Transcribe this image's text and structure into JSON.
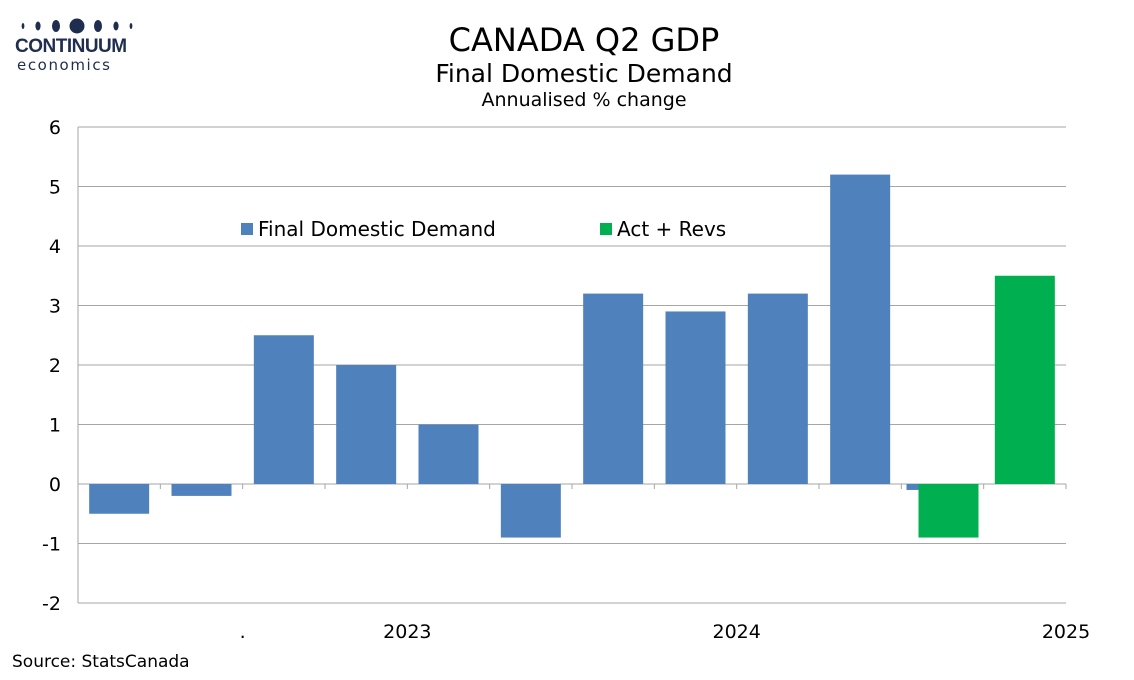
{
  "logo": {
    "line1": "CONTINUUM",
    "line2": "economics"
  },
  "source": "Source: StatsCanada",
  "colors": {
    "primary": "#4f81bd",
    "highlight": "#00b050",
    "gridline": "#a6a6a6",
    "logo": "#1f2e4f"
  },
  "chart_data": {
    "type": "bar",
    "title": "CANADA Q2 GDP",
    "subtitle": "Final Domestic Demand",
    "units": "Annualised % change",
    "ylim": [
      -2,
      6
    ],
    "yticks": [
      "6",
      "5",
      "4",
      "3",
      "2",
      "1",
      "0",
      "-1",
      "-2"
    ],
    "grid": true,
    "legend_position": "top-center",
    "x_labels": [
      {
        "text": ".",
        "after_bar": 1
      },
      {
        "text": "2023",
        "after_bar": 3
      },
      {
        "text": "2024",
        "after_bar": 7
      },
      {
        "text": "2025",
        "after_bar": 11
      }
    ],
    "series": [
      {
        "name": "Final Domestic Demand",
        "color": "#4f81bd",
        "values": [
          -0.5,
          -0.2,
          2.5,
          2.0,
          1.0,
          -0.9,
          3.2,
          2.9,
          3.2,
          5.2,
          -0.1,
          null
        ]
      },
      {
        "name": "Act + Revs",
        "color": "#00b050",
        "values": [
          null,
          null,
          null,
          null,
          null,
          null,
          null,
          null,
          null,
          null,
          -0.9,
          3.5
        ]
      }
    ]
  }
}
